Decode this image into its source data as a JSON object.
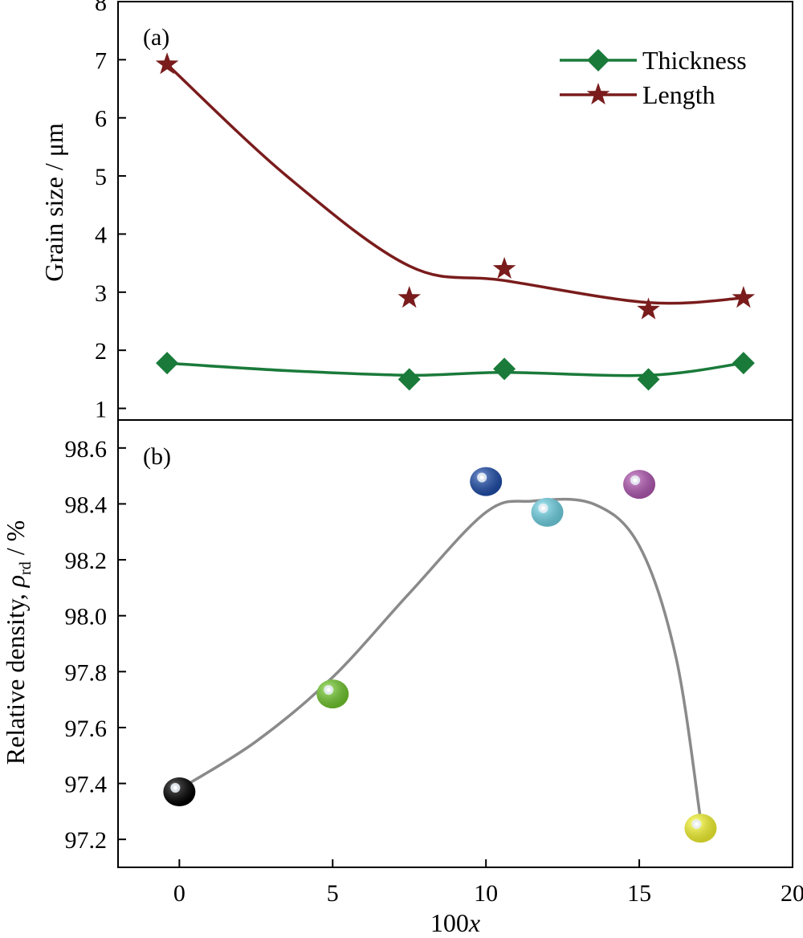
{
  "chart_data": [
    {
      "type": "line",
      "panel_label": "(a)",
      "title": "",
      "xlabel": "",
      "ylabel": "Grain size / μm",
      "xlim": [
        -2,
        20
      ],
      "ylim": [
        0.8,
        8
      ],
      "yticks": [
        1,
        2,
        3,
        4,
        5,
        6,
        7,
        8
      ],
      "legend": {
        "position": "top-right"
      },
      "series": [
        {
          "name": "Thickness",
          "marker": "diamond",
          "color": "#1a7a3a",
          "points": [
            [
              -0.4,
              1.78
            ],
            [
              7.5,
              1.5
            ],
            [
              10.6,
              1.68
            ],
            [
              15.3,
              1.5
            ],
            [
              18.4,
              1.78
            ]
          ],
          "curve": [
            [
              -0.4,
              1.78
            ],
            [
              3.5,
              1.65
            ],
            [
              7.5,
              1.57
            ],
            [
              10.6,
              1.62
            ],
            [
              15.3,
              1.57
            ],
            [
              18.4,
              1.78
            ]
          ]
        },
        {
          "name": "Length",
          "marker": "star",
          "color": "#7a1c1c",
          "points": [
            [
              -0.4,
              6.92
            ],
            [
              7.5,
              2.9
            ],
            [
              10.6,
              3.4
            ],
            [
              15.3,
              2.7
            ],
            [
              18.4,
              2.9
            ]
          ],
          "curve": [
            [
              -0.4,
              6.92
            ],
            [
              3.5,
              5.0
            ],
            [
              7.5,
              3.45
            ],
            [
              10.6,
              3.2
            ],
            [
              15.3,
              2.82
            ],
            [
              18.4,
              2.9
            ]
          ]
        }
      ]
    },
    {
      "type": "scatter",
      "panel_label": "(b)",
      "title": "",
      "xlabel": "100x",
      "ylabel_main": "Relative density, ",
      "ylabel_symbol": "ρ",
      "ylabel_sub": "rd",
      "ylabel_unit": " / %",
      "xlim": [
        -2,
        20
      ],
      "ylim": [
        97.1,
        98.7
      ],
      "xticks": [
        0,
        5,
        10,
        15,
        20
      ],
      "xtick_labels": [
        "0",
        "5",
        "10",
        "15",
        "20"
      ],
      "yticks": [
        97.2,
        97.4,
        97.6,
        97.8,
        98.0,
        98.2,
        98.4,
        98.6
      ],
      "ytick_labels": [
        "97.2",
        "97.4",
        "97.6",
        "97.8",
        "98.0",
        "98.2",
        "98.4",
        "98.6"
      ],
      "points": [
        {
          "x": 0,
          "y": 97.37,
          "color": "#000000"
        },
        {
          "x": 5,
          "y": 97.72,
          "color": "#6cbd2e"
        },
        {
          "x": 10,
          "y": 98.48,
          "color": "#1f4aa0"
        },
        {
          "x": 12,
          "y": 98.37,
          "color": "#6cc8d8"
        },
        {
          "x": 15,
          "y": 98.47,
          "color": "#a855a8"
        },
        {
          "x": 17,
          "y": 97.24,
          "color": "#e8e830"
        }
      ],
      "curve_color": "#8a8a8a",
      "curve": [
        [
          0,
          97.38
        ],
        [
          2.5,
          97.55
        ],
        [
          5,
          97.78
        ],
        [
          7.5,
          98.08
        ],
        [
          10,
          98.37
        ],
        [
          11.5,
          98.41
        ],
        [
          13.5,
          98.4
        ],
        [
          15,
          98.25
        ],
        [
          16.2,
          97.85
        ],
        [
          17,
          97.27
        ]
      ]
    }
  ]
}
